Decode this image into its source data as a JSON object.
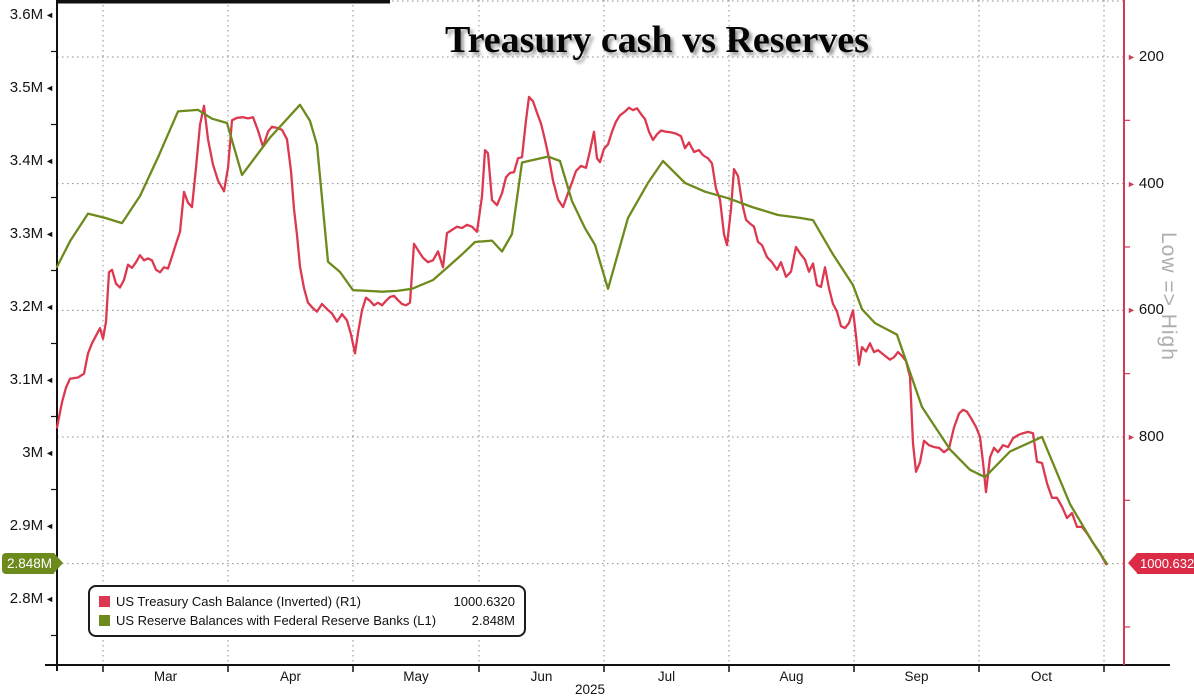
{
  "legend": {
    "items": [
      {
        "label": "US Treasury Cash Balance (Inverted) (R1)",
        "value": "1000.6320",
        "color": "#dc3950"
      },
      {
        "label": "US Reserve Balances with Federal Reserve Banks (L1)",
        "value": "2.848M",
        "color": "#6d8a1d"
      }
    ]
  },
  "chart_data": {
    "type": "line",
    "title": "Treasury cash vs Reserves",
    "x_axis": {
      "year": "2025",
      "months": [
        "Mar",
        "Apr",
        "May",
        "Jun",
        "Jul",
        "Aug",
        "Sep",
        "Oct"
      ]
    },
    "left_axis": {
      "tick_labels": [
        "3.6M",
        "3.5M",
        "3.4M",
        "3.3M",
        "3.2M",
        "3.1M",
        "3M",
        "2.9M",
        "2.8M"
      ],
      "tick_values": [
        3.6,
        3.5,
        3.4,
        3.3,
        3.2,
        3.1,
        3.0,
        2.9,
        2.8
      ],
      "minor_values": [
        3.55,
        3.45,
        3.35,
        3.25,
        3.15,
        3.05,
        2.95,
        2.75
      ],
      "current": {
        "label": "2.848M",
        "value": 2.848
      }
    },
    "right_axis": {
      "tick_labels": [
        "200",
        "400",
        "600",
        "800"
      ],
      "tick_values": [
        200,
        400,
        600,
        800
      ],
      "minor_values": [
        300,
        500,
        700,
        900,
        1100
      ],
      "gridline_values": [
        200,
        400,
        600,
        800,
        1000
      ],
      "annotation": "Low => High",
      "current": {
        "label": "1000.6320",
        "value": 1000.632
      }
    },
    "series": [
      {
        "name": "US Treasury Cash Balance (Inverted) (R1)",
        "axis": "right",
        "color": "#dc3950",
        "points": [
          [
            57,
            785
          ],
          [
            62,
            745
          ],
          [
            66,
            722
          ],
          [
            70,
            708
          ],
          [
            78,
            706
          ],
          [
            84,
            700
          ],
          [
            88,
            668
          ],
          [
            92,
            652
          ],
          [
            96,
            640
          ],
          [
            100,
            628
          ],
          [
            103,
            645
          ],
          [
            106,
            618
          ],
          [
            109,
            540
          ],
          [
            112,
            536
          ],
          [
            116,
            558
          ],
          [
            120,
            564
          ],
          [
            124,
            552
          ],
          [
            128,
            528
          ],
          [
            132,
            533
          ],
          [
            136,
            524
          ],
          [
            140,
            513
          ],
          [
            144,
            521
          ],
          [
            148,
            518
          ],
          [
            152,
            521
          ],
          [
            156,
            536
          ],
          [
            160,
            540
          ],
          [
            164,
            532
          ],
          [
            168,
            534
          ],
          [
            172,
            515
          ],
          [
            176,
            495
          ],
          [
            180,
            476
          ],
          [
            184,
            413
          ],
          [
            188,
            430
          ],
          [
            192,
            437
          ],
          [
            196,
            375
          ],
          [
            200,
            307
          ],
          [
            204,
            277
          ],
          [
            208,
            330
          ],
          [
            213,
            370
          ],
          [
            218,
            395
          ],
          [
            224,
            412
          ],
          [
            228,
            375
          ],
          [
            232,
            300
          ],
          [
            237,
            296
          ],
          [
            243,
            295
          ],
          [
            248,
            297
          ],
          [
            253,
            295
          ],
          [
            258,
            316
          ],
          [
            263,
            342
          ],
          [
            268,
            318
          ],
          [
            272,
            310
          ],
          [
            277,
            312
          ],
          [
            282,
            315
          ],
          [
            287,
            330
          ],
          [
            291,
            380
          ],
          [
            294,
            440
          ],
          [
            297,
            481
          ],
          [
            300,
            531
          ],
          [
            304,
            565
          ],
          [
            308,
            588
          ],
          [
            312,
            595
          ],
          [
            317,
            602
          ],
          [
            322,
            590
          ],
          [
            327,
            598
          ],
          [
            332,
            605
          ],
          [
            337,
            618
          ],
          [
            342,
            606
          ],
          [
            347,
            616
          ],
          [
            351,
            638
          ],
          [
            355,
            668
          ],
          [
            358,
            636
          ],
          [
            362,
            600
          ],
          [
            366,
            580
          ],
          [
            370,
            585
          ],
          [
            374,
            592
          ],
          [
            378,
            588
          ],
          [
            382,
            592
          ],
          [
            386,
            585
          ],
          [
            390,
            579
          ],
          [
            394,
            577
          ],
          [
            398,
            584
          ],
          [
            402,
            590
          ],
          [
            406,
            592
          ],
          [
            410,
            588
          ],
          [
            414,
            495
          ],
          [
            418,
            505
          ],
          [
            423,
            517
          ],
          [
            428,
            524
          ],
          [
            433,
            521
          ],
          [
            438,
            507
          ],
          [
            443,
            532
          ],
          [
            447,
            478
          ],
          [
            452,
            473
          ],
          [
            457,
            468
          ],
          [
            462,
            470
          ],
          [
            467,
            465
          ],
          [
            472,
            468
          ],
          [
            477,
            476
          ],
          [
            482,
            420
          ],
          [
            485,
            347
          ],
          [
            488,
            352
          ],
          [
            492,
            426
          ],
          [
            497,
            434
          ],
          [
            502,
            415
          ],
          [
            506,
            390
          ],
          [
            510,
            383
          ],
          [
            514,
            382
          ],
          [
            518,
            360
          ],
          [
            522,
            358
          ],
          [
            526,
            300
          ],
          [
            529,
            263
          ],
          [
            533,
            270
          ],
          [
            537,
            288
          ],
          [
            541,
            305
          ],
          [
            545,
            331
          ],
          [
            549,
            360
          ],
          [
            553,
            395
          ],
          [
            558,
            425
          ],
          [
            563,
            437
          ],
          [
            568,
            415
          ],
          [
            572,
            398
          ],
          [
            576,
            380
          ],
          [
            581,
            372
          ],
          [
            586,
            375
          ],
          [
            590,
            348
          ],
          [
            594,
            318
          ],
          [
            597,
            360
          ],
          [
            600,
            366
          ],
          [
            604,
            345
          ],
          [
            608,
            338
          ],
          [
            612,
            318
          ],
          [
            616,
            302
          ],
          [
            620,
            292
          ],
          [
            625,
            286
          ],
          [
            629,
            280
          ],
          [
            633,
            284
          ],
          [
            637,
            281
          ],
          [
            641,
            290
          ],
          [
            645,
            298
          ],
          [
            649,
            318
          ],
          [
            653,
            331
          ],
          [
            657,
            322
          ],
          [
            661,
            316
          ],
          [
            666,
            318
          ],
          [
            671,
            319
          ],
          [
            676,
            321
          ],
          [
            681,
            325
          ],
          [
            685,
            344
          ],
          [
            689,
            335
          ],
          [
            694,
            350
          ],
          [
            699,
            347
          ],
          [
            703,
            355
          ],
          [
            708,
            360
          ],
          [
            712,
            368
          ],
          [
            716,
            408
          ],
          [
            720,
            425
          ],
          [
            724,
            480
          ],
          [
            727,
            497
          ],
          [
            731,
            440
          ],
          [
            734,
            377
          ],
          [
            738,
            388
          ],
          [
            742,
            430
          ],
          [
            746,
            457
          ],
          [
            750,
            463
          ],
          [
            754,
            468
          ],
          [
            758,
            492
          ],
          [
            762,
            497
          ],
          [
            767,
            516
          ],
          [
            772,
            524
          ],
          [
            777,
            536
          ],
          [
            781,
            524
          ],
          [
            786,
            547
          ],
          [
            791,
            539
          ],
          [
            796,
            500
          ],
          [
            800,
            510
          ],
          [
            805,
            520
          ],
          [
            809,
            539
          ],
          [
            813,
            526
          ],
          [
            817,
            560
          ],
          [
            821,
            563
          ],
          [
            825,
            532
          ],
          [
            829,
            565
          ],
          [
            833,
            590
          ],
          [
            837,
            602
          ],
          [
            841,
            625
          ],
          [
            845,
            628
          ],
          [
            849,
            620
          ],
          [
            853,
            600
          ],
          [
            856,
            640
          ],
          [
            859,
            686
          ],
          [
            862,
            658
          ],
          [
            866,
            665
          ],
          [
            870,
            652
          ],
          [
            874,
            666
          ],
          [
            878,
            663
          ],
          [
            882,
            668
          ],
          [
            886,
            673
          ],
          [
            890,
            678
          ],
          [
            894,
            674
          ],
          [
            898,
            666
          ],
          [
            902,
            672
          ],
          [
            906,
            680
          ],
          [
            910,
            705
          ],
          [
            913,
            810
          ],
          [
            916,
            855
          ],
          [
            920,
            840
          ],
          [
            924,
            806
          ],
          [
            929,
            813
          ],
          [
            934,
            816
          ],
          [
            939,
            817
          ],
          [
            944,
            824
          ],
          [
            949,
            818
          ],
          [
            954,
            785
          ],
          [
            959,
            763
          ],
          [
            963,
            757
          ],
          [
            967,
            760
          ],
          [
            971,
            770
          ],
          [
            976,
            784
          ],
          [
            980,
            800
          ],
          [
            983,
            840
          ],
          [
            986,
            887
          ],
          [
            990,
            832
          ],
          [
            994,
            817
          ],
          [
            998,
            824
          ],
          [
            1003,
            813
          ],
          [
            1008,
            816
          ],
          [
            1013,
            802
          ],
          [
            1018,
            797
          ],
          [
            1023,
            794
          ],
          [
            1028,
            792
          ],
          [
            1033,
            794
          ],
          [
            1037,
            839
          ],
          [
            1042,
            841
          ],
          [
            1047,
            873
          ],
          [
            1052,
            896
          ],
          [
            1057,
            896
          ],
          [
            1062,
            910
          ],
          [
            1067,
            928
          ],
          [
            1072,
            920
          ],
          [
            1077,
            942
          ],
          [
            1082,
            942
          ],
          [
            1087,
            952
          ],
          [
            1093,
            967
          ],
          [
            1100,
            983
          ],
          [
            1106,
            1000.632
          ]
        ]
      },
      {
        "name": "US Reserve Balances with Federal Reserve Banks (L1)",
        "axis": "left",
        "color": "#6d8a1d",
        "points": [
          [
            57,
            3.255
          ],
          [
            70,
            3.29
          ],
          [
            88,
            3.328
          ],
          [
            105,
            3.322
          ],
          [
            122,
            3.315
          ],
          [
            140,
            3.352
          ],
          [
            158,
            3.405
          ],
          [
            178,
            3.468
          ],
          [
            198,
            3.47
          ],
          [
            212,
            3.458
          ],
          [
            227,
            3.452
          ],
          [
            242,
            3.381
          ],
          [
            270,
            3.432
          ],
          [
            300,
            3.477
          ],
          [
            310,
            3.455
          ],
          [
            317,
            3.422
          ],
          [
            328,
            3.262
          ],
          [
            340,
            3.248
          ],
          [
            353,
            3.223
          ],
          [
            368,
            3.222
          ],
          [
            382,
            3.221
          ],
          [
            397,
            3.222
          ],
          [
            412,
            3.225
          ],
          [
            433,
            3.237
          ],
          [
            448,
            3.255
          ],
          [
            462,
            3.272
          ],
          [
            475,
            3.289
          ],
          [
            492,
            3.291
          ],
          [
            502,
            3.276
          ],
          [
            512,
            3.3
          ],
          [
            522,
            3.398
          ],
          [
            548,
            3.406
          ],
          [
            560,
            3.4
          ],
          [
            572,
            3.345
          ],
          [
            585,
            3.308
          ],
          [
            595,
            3.285
          ],
          [
            608,
            3.225
          ],
          [
            628,
            3.322
          ],
          [
            648,
            3.37
          ],
          [
            663,
            3.4
          ],
          [
            685,
            3.37
          ],
          [
            705,
            3.358
          ],
          [
            728,
            3.349
          ],
          [
            752,
            3.337
          ],
          [
            778,
            3.326
          ],
          [
            800,
            3.322
          ],
          [
            813,
            3.319
          ],
          [
            833,
            3.272
          ],
          [
            853,
            3.23
          ],
          [
            862,
            3.197
          ],
          [
            875,
            3.178
          ],
          [
            897,
            3.162
          ],
          [
            922,
            3.063
          ],
          [
            950,
            3.005
          ],
          [
            970,
            2.977
          ],
          [
            985,
            2.967
          ],
          [
            1010,
            3.002
          ],
          [
            1042,
            3.022
          ],
          [
            1070,
            2.93
          ],
          [
            1093,
            2.877
          ],
          [
            1107,
            2.848
          ]
        ]
      }
    ]
  }
}
